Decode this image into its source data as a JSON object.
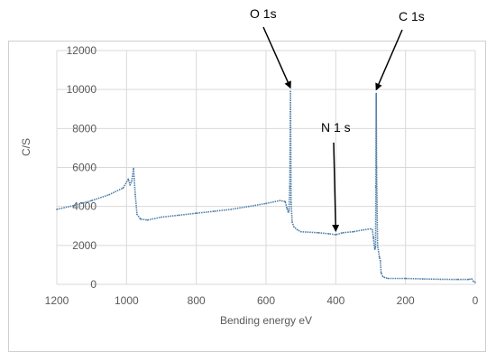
{
  "chart_data": {
    "type": "line",
    "title": "",
    "xlabel": "Bending energy eV",
    "ylabel": "C/S",
    "x_reversed": true,
    "xlim": [
      0,
      1200
    ],
    "ylim": [
      0,
      12000
    ],
    "x_ticks": [
      1200,
      1000,
      800,
      600,
      400,
      200,
      0
    ],
    "y_ticks": [
      0,
      2000,
      4000,
      6000,
      8000,
      10000,
      12000
    ],
    "grid": true,
    "legend": "none",
    "series_color": "#4f7ea8",
    "series": [
      {
        "x": [
          1200,
          1150,
          1100,
          1050,
          1010,
          995,
          990,
          985,
          980,
          975,
          970,
          960,
          940,
          900,
          850,
          800,
          750,
          700,
          650,
          600,
          560,
          545,
          540,
          536,
          534,
          532,
          530,
          528,
          525,
          520,
          510,
          500,
          450,
          420,
          400,
          380,
          350,
          320,
          300,
          295,
          292,
          290,
          288,
          286,
          285,
          284,
          283,
          280,
          275,
          272,
          270,
          265,
          260,
          250,
          200,
          150,
          100,
          50,
          20,
          10,
          5,
          0
        ],
        "y": [
          3850,
          4050,
          4300,
          4600,
          4950,
          5400,
          5100,
          5300,
          5950,
          4600,
          3600,
          3350,
          3300,
          3450,
          3550,
          3650,
          3750,
          3850,
          4000,
          4150,
          4300,
          4250,
          3900,
          3700,
          3800,
          5000,
          9900,
          4200,
          3200,
          2950,
          2800,
          2700,
          2650,
          2600,
          2550,
          2650,
          2700,
          2800,
          2850,
          2800,
          2400,
          2000,
          1800,
          1900,
          5000,
          9800,
          6000,
          2000,
          1400,
          1200,
          600,
          400,
          350,
          300,
          300,
          280,
          260,
          250,
          250,
          280,
          150,
          100
        ]
      }
    ],
    "annotations": [
      {
        "label": "O 1s",
        "x": 530,
        "y": 9900
      },
      {
        "label": "N 1 s",
        "x": 400,
        "y": 2550
      },
      {
        "label": "C 1s",
        "x": 284,
        "y": 9800
      }
    ]
  }
}
